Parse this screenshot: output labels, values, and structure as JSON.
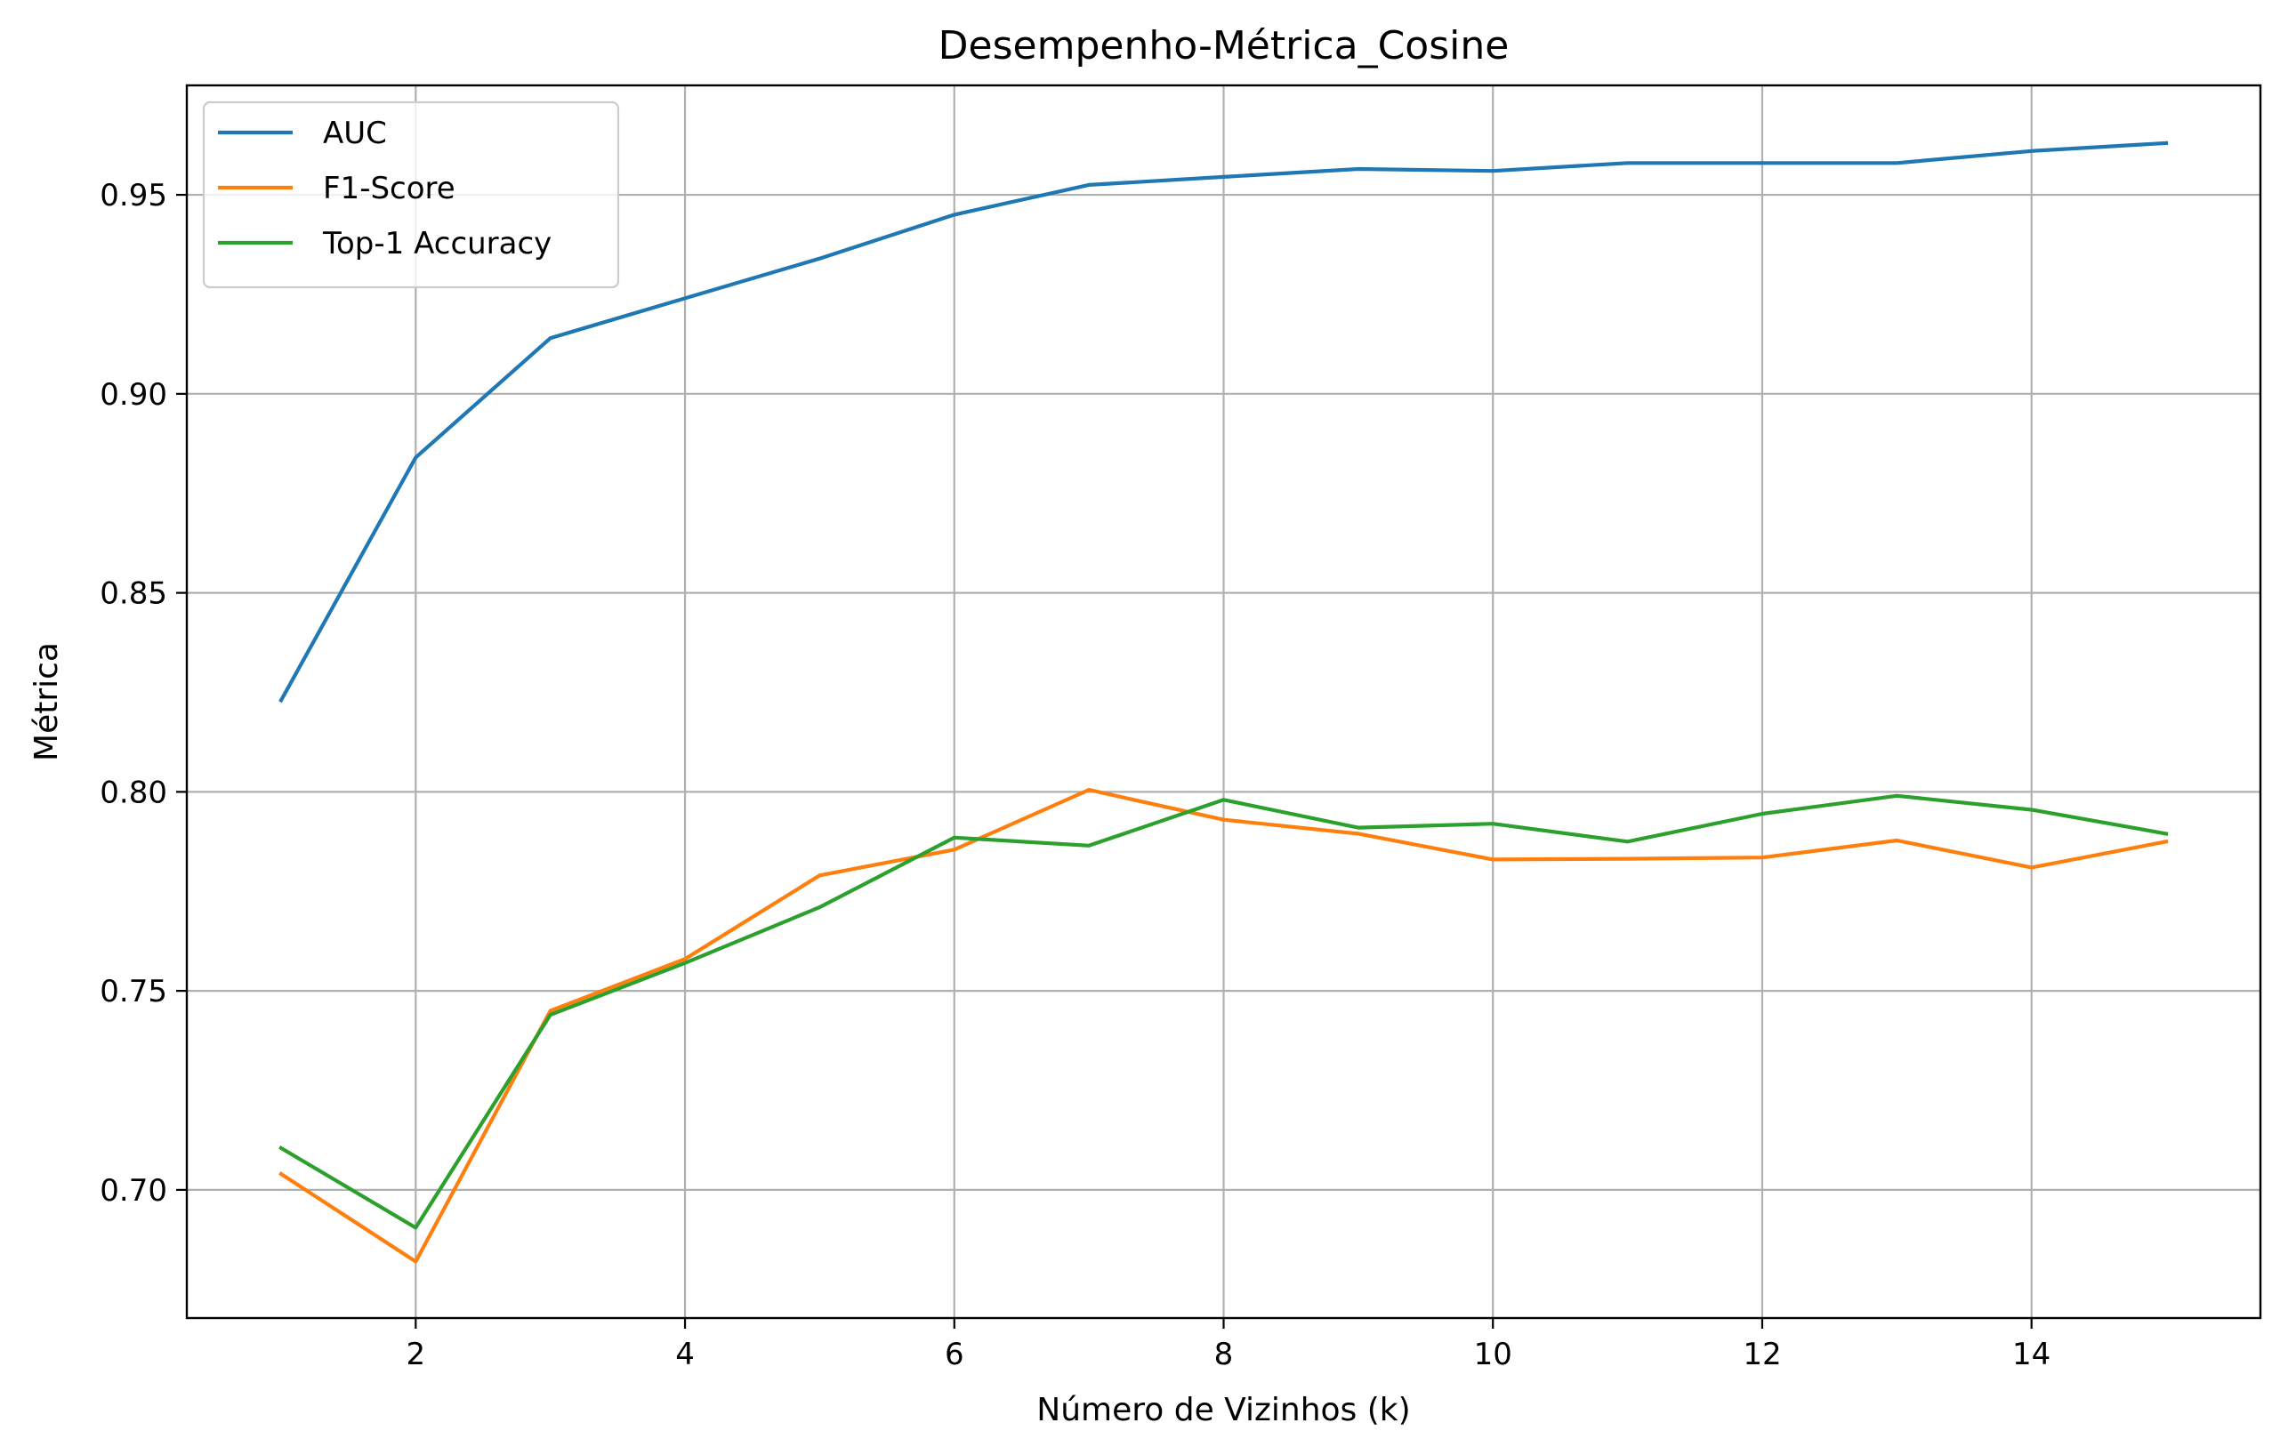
{
  "chart_data": {
    "type": "line",
    "title": "Desempenho-Métrica_Cosine",
    "xlabel": "Número de Vizinhos (k)",
    "ylabel": "Métrica",
    "x": [
      1,
      2,
      3,
      4,
      5,
      6,
      7,
      8,
      9,
      10,
      11,
      12,
      13,
      14,
      15
    ],
    "xlim": [
      0.3,
      15.7
    ],
    "ylim": [
      0.6678,
      0.9775
    ],
    "xticks": [
      2,
      4,
      6,
      8,
      10,
      12,
      14
    ],
    "xtick_labels": [
      "2",
      "4",
      "6",
      "8",
      "10",
      "12",
      "14"
    ],
    "yticks": [
      0.7,
      0.75,
      0.8,
      0.85,
      0.9,
      0.95
    ],
    "ytick_labels": [
      "0.70",
      "0.75",
      "0.80",
      "0.85",
      "0.90",
      "0.95"
    ],
    "grid": true,
    "legend_position": "top-left",
    "series": [
      {
        "name": "AUC",
        "color": "#1f77b4",
        "values": [
          0.823,
          0.884,
          0.914,
          0.924,
          0.934,
          0.945,
          0.9525,
          0.9545,
          0.9565,
          0.956,
          0.958,
          0.958,
          0.958,
          0.961,
          0.963
        ]
      },
      {
        "name": "F1-Score",
        "color": "#ff7f0e",
        "values": [
          0.704,
          0.682,
          0.745,
          0.758,
          0.779,
          0.7855,
          0.8005,
          0.793,
          0.7895,
          0.783,
          0.7832,
          0.7835,
          0.7878,
          0.781,
          0.7875
        ]
      },
      {
        "name": "Top-1 Accuracy",
        "color": "#2ca02c",
        "values": [
          0.7105,
          0.6905,
          0.744,
          0.757,
          0.771,
          0.7885,
          0.7865,
          0.798,
          0.791,
          0.792,
          0.7875,
          0.7945,
          0.799,
          0.7955,
          0.7895
        ]
      }
    ]
  }
}
